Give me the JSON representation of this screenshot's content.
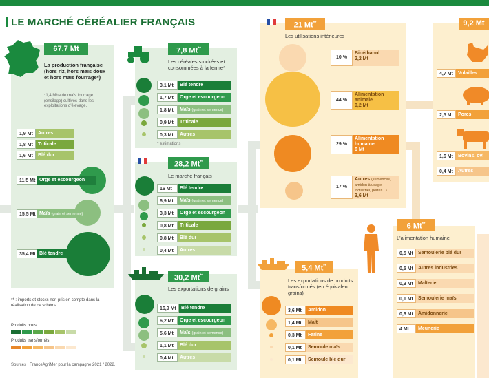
{
  "title": "LE MARCHÉ CÉRÉALIER FRANÇAIS",
  "production": {
    "total": "67,7 Mt",
    "desc": "La production française (hors riz, hors maïs doux et hors maïs fourrage*)",
    "note": "*1,4 Mha de maïs fourrage (ensilage) cultivés dans les exploitations d'élevage.",
    "items": [
      {
        "value": "1,9 Mt",
        "label": "Autres"
      },
      {
        "value": "1,8 Mt",
        "label": "Triticale"
      },
      {
        "value": "1,6 Mt",
        "label": "Blé dur"
      },
      {
        "value": "11,5 Mt",
        "label": "Orge et escourgeon"
      },
      {
        "value": "15,5 Mt",
        "label": "Maïs",
        "note": "(grain et semence)"
      },
      {
        "value": "35,4 Mt",
        "label": "Blé tendre"
      }
    ]
  },
  "stored": {
    "total": "7,8 Mt",
    "sup": "**",
    "desc": "Les céréales stockées et consommées à la ferme*",
    "estimations": "* estimations",
    "items": [
      {
        "value": "3,1 Mt",
        "label": "Blé tendre"
      },
      {
        "value": "1,7 Mt",
        "label": "Orge et escourgeon"
      },
      {
        "value": "1,8 Mt",
        "label": "Maïs",
        "note": "(grain et semence)"
      },
      {
        "value": "0,9 Mt",
        "label": "Triticale"
      },
      {
        "value": "0,3 Mt",
        "label": "Autres"
      }
    ]
  },
  "market": {
    "total": "28,2 Mt",
    "sup": "**",
    "desc": "Le marché français",
    "items": [
      {
        "value": "16 Mt",
        "label": "Blé tendre"
      },
      {
        "value": "6,9 Mt",
        "label": "Maïs",
        "note": "(grain et semence)"
      },
      {
        "value": "3,3 Mt",
        "label": "Orge et escourgeon"
      },
      {
        "value": "0,8 Mt",
        "label": "Triticale"
      },
      {
        "value": "0,8 Mt",
        "label": "Blé dur"
      },
      {
        "value": "0,4 Mt",
        "label": "Autres"
      }
    ]
  },
  "exports": {
    "total": "30,2 Mt",
    "sup": "**",
    "desc": "Les exportations de grains",
    "items": [
      {
        "value": "16,9 Mt",
        "label": "Blé tendre"
      },
      {
        "value": "6,2 Mt",
        "label": "Orge et escourgeon"
      },
      {
        "value": "5,6 Mt",
        "label": "Maïs",
        "note": "(grain et semence)"
      },
      {
        "value": "1,1 Mt",
        "label": "Blé dur"
      },
      {
        "value": "0,4 Mt",
        "label": "Autres"
      }
    ]
  },
  "interior": {
    "total": "21 Mt",
    "sup": "**",
    "desc": "Les utilisations intérieures",
    "items": [
      {
        "pct": "10 %",
        "label": "Bioéthanol",
        "value": "2,2 Mt"
      },
      {
        "pct": "44 %",
        "label": "Alimentation animale",
        "value": "9,2 Mt"
      },
      {
        "pct": "29 %",
        "label": "Alimentation humaine",
        "value": "6 Mt"
      },
      {
        "pct": "17 %",
        "label": "Autres",
        "note": "(semences, amidon à usage industriel, pertes...)",
        "value": "3,6 Mt"
      }
    ]
  },
  "animal": {
    "total": "9,2 Mt",
    "items": [
      {
        "value": "4,7 Mt",
        "label": "Volailles"
      },
      {
        "value": "2,5 Mt",
        "label": "Porcs"
      },
      {
        "value": "1,6 Mt",
        "label": "Bovins, ovi"
      },
      {
        "value": "0,4 Mt",
        "label": "Autres"
      }
    ]
  },
  "human": {
    "total": "6 Mt",
    "sup": "**",
    "desc": "L'alimentation humaine",
    "items": [
      {
        "value": "0,5 Mt",
        "label": "Semoulerie blé dur"
      },
      {
        "value": "0,5 Mt",
        "label": "Autres industries"
      },
      {
        "value": "0,3 Mt",
        "label": "Malterie"
      },
      {
        "value": "0,1 Mt",
        "label": "Semoulerie maïs"
      },
      {
        "value": "0,6 Mt",
        "label": "Amidonnerie"
      },
      {
        "value": "4 Mt",
        "label": "Meunerie"
      }
    ]
  },
  "processed": {
    "total": "5,4 Mt",
    "sup": "**",
    "desc": "Les exportations de produits transformés (en équivalent grains)",
    "items": [
      {
        "value": "3,6 Mt",
        "label": "Amidon"
      },
      {
        "value": "1,4 Mt",
        "label": "Malt"
      },
      {
        "value": "0,3 Mt",
        "label": "Farine"
      },
      {
        "value": "0,1 Mt",
        "label": "Semoule maïs"
      },
      {
        "value": "0,1 Mt",
        "label": "Semoule blé dur"
      }
    ]
  },
  "legend": {
    "footnote": "** : imports et stocks non pris en compte dans la réalisation de ce schéma.",
    "raw": "Produits bruts",
    "processed": "Produits transformés",
    "sources": "Sources : FranceAgriMer pour la campagne 2021 / 2022."
  },
  "colors": {
    "green_dark": "#1a6e33",
    "green": "#2f9a4c",
    "green_mid": "#7aa83d",
    "green_light": "#a7c46a",
    "orange": "#f2a13a",
    "orange_dark": "#e8872a",
    "orange_light": "#f6c58a"
  }
}
